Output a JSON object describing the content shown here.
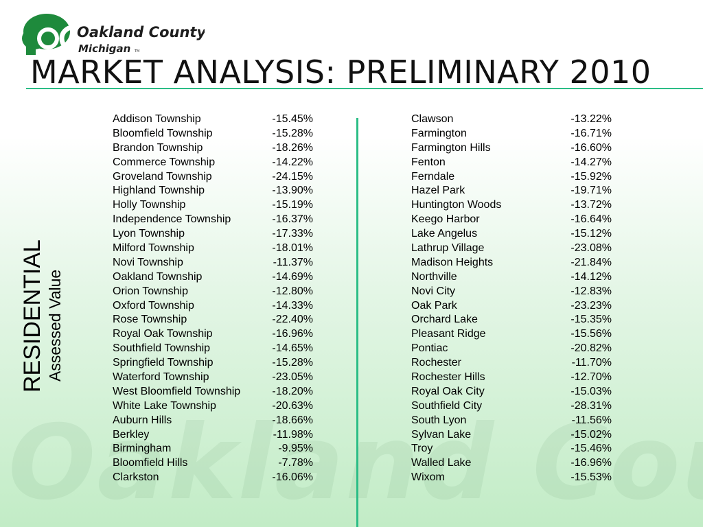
{
  "brand": {
    "name_line1": "Oakland County",
    "name_line2": "Michigan",
    "tm": "TM",
    "watermark": "Oakland County",
    "accent_color": "#2bbd86",
    "logo_color": "#1e8a3c"
  },
  "title": "MARKET ANALYSIS: PRELIMINARY 2010",
  "side_label": {
    "main": "RESIDENTIAL",
    "sub": "Assessed Value"
  },
  "left_column": [
    {
      "name": "Addison Township",
      "value": "-15.45%"
    },
    {
      "name": "Bloomfield Township",
      "value": "-15.28%"
    },
    {
      "name": "Brandon Township",
      "value": "-18.26%"
    },
    {
      "name": "Commerce Township",
      "value": "-14.22%"
    },
    {
      "name": "Groveland Township",
      "value": "-24.15%"
    },
    {
      "name": "Highland Township",
      "value": "-13.90%"
    },
    {
      "name": "Holly Township",
      "value": "-15.19%"
    },
    {
      "name": "Independence Township",
      "value": "-16.37%"
    },
    {
      "name": "Lyon Township",
      "value": "-17.33%"
    },
    {
      "name": "Milford Township",
      "value": "-18.01%"
    },
    {
      "name": "Novi Township",
      "value": "-11.37%"
    },
    {
      "name": "Oakland Township",
      "value": "-14.69%"
    },
    {
      "name": "Orion Township",
      "value": "-12.80%"
    },
    {
      "name": "Oxford Township",
      "value": "-14.33%"
    },
    {
      "name": "Rose Township",
      "value": "-22.40%"
    },
    {
      "name": "Royal Oak Township",
      "value": "-16.96%"
    },
    {
      "name": "Southfield Township",
      "value": "-14.65%"
    },
    {
      "name": "Springfield Township",
      "value": "-15.28%"
    },
    {
      "name": "Waterford Township",
      "value": "-23.05%"
    },
    {
      "name": "West Bloomfield Township",
      "value": "-18.20%"
    },
    {
      "name": "White Lake Township",
      "value": "-20.63%"
    },
    {
      "name": "Auburn Hills",
      "value": "-18.66%"
    },
    {
      "name": "Berkley",
      "value": "-11.98%"
    },
    {
      "name": "Birmingham",
      "value": "-9.95%"
    },
    {
      "name": "Bloomfield Hills",
      "value": "-7.78%"
    },
    {
      "name": "Clarkston",
      "value": "-16.06%"
    }
  ],
  "right_column": [
    {
      "name": "Clawson",
      "value": "-13.22%"
    },
    {
      "name": "Farmington",
      "value": "-16.71%"
    },
    {
      "name": "Farmington Hills",
      "value": "-16.60%"
    },
    {
      "name": "Fenton",
      "value": "-14.27%"
    },
    {
      "name": "Ferndale",
      "value": "-15.92%"
    },
    {
      "name": "Hazel Park",
      "value": "-19.71%"
    },
    {
      "name": "Huntington Woods",
      "value": "-13.72%"
    },
    {
      "name": "Keego Harbor",
      "value": "-16.64%"
    },
    {
      "name": "Lake Angelus",
      "value": "-15.12%"
    },
    {
      "name": "Lathrup Village",
      "value": "-23.08%"
    },
    {
      "name": "Madison Heights",
      "value": "-21.84%"
    },
    {
      "name": "Northville",
      "value": "-14.12%"
    },
    {
      "name": "Novi City",
      "value": "-12.83%"
    },
    {
      "name": "Oak Park",
      "value": "-23.23%"
    },
    {
      "name": "Orchard Lake",
      "value": "-15.35%"
    },
    {
      "name": "Pleasant Ridge",
      "value": "-15.56%"
    },
    {
      "name": "Pontiac",
      "value": "-20.82%"
    },
    {
      "name": "Rochester",
      "value": "-11.70%"
    },
    {
      "name": "Rochester Hills",
      "value": "-12.70%"
    },
    {
      "name": "Royal Oak City",
      "value": "-15.03%"
    },
    {
      "name": "Southfield City",
      "value": "-28.31%"
    },
    {
      "name": "South Lyon",
      "value": "-11.56%"
    },
    {
      "name": "Sylvan Lake",
      "value": "-15.02%"
    },
    {
      "name": "Troy",
      "value": "-15.46%"
    },
    {
      "name": "Walled Lake",
      "value": "-16.96%"
    },
    {
      "name": "Wixom",
      "value": "-15.53%"
    }
  ]
}
